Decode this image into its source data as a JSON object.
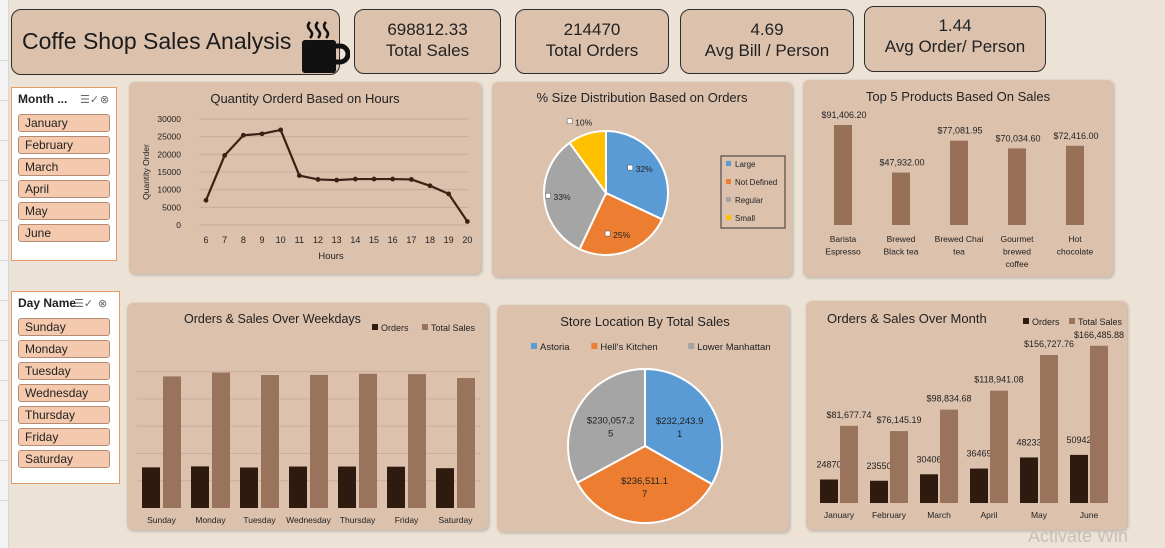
{
  "header": {
    "title": "Coffe Shop Sales Analysis",
    "kpis": [
      {
        "value": "698812.33",
        "label": "Total Sales"
      },
      {
        "value": "214470",
        "label": "Total Orders"
      },
      {
        "value": "4.69",
        "label": "Avg Bill /  Person"
      },
      {
        "value": "1.44",
        "label": "Avg Order/ Person"
      }
    ]
  },
  "slicers": {
    "month": {
      "header": "Month ...",
      "items": [
        "January",
        "February",
        "March",
        "April",
        "May",
        "June"
      ]
    },
    "day": {
      "header": "Day Name",
      "items": [
        "Sunday",
        "Monday",
        "Tuesday",
        "Wednesday",
        "Thursday",
        "Friday",
        "Saturday"
      ]
    }
  },
  "watermark": "Activate Win",
  "chart_data": [
    {
      "id": "hours",
      "type": "line",
      "title": "Quantity Orderd Based on Hours",
      "xlabel": "Hours",
      "ylabel": "Quantity Order",
      "x": [
        6,
        7,
        8,
        9,
        10,
        11,
        12,
        13,
        14,
        15,
        16,
        17,
        18,
        19,
        20
      ],
      "values": [
        7000,
        19700,
        25400,
        25800,
        26900,
        14000,
        12900,
        12700,
        13000,
        13000,
        13000,
        12900,
        11100,
        8800,
        1000
      ],
      "yticks": [
        0,
        5000,
        10000,
        15000,
        20000,
        25000,
        30000
      ],
      "ylim": [
        0,
        30000
      ],
      "grid": true,
      "color": "#3b2214"
    },
    {
      "id": "size",
      "type": "pie",
      "title": "% Size Distribution Based on Orders",
      "categories": [
        "Large",
        "Not Defined",
        "Regular",
        "Small"
      ],
      "values": [
        32,
        25,
        33,
        10
      ],
      "labels": [
        "32%",
        "25%",
        "33%",
        "10%"
      ],
      "colors": [
        "#5b9bd5",
        "#ed7d31",
        "#a5a5a5",
        "#ffc000"
      ],
      "legend": "right"
    },
    {
      "id": "top5",
      "type": "bar",
      "title": "Top 5 Products Based On Sales",
      "categories": [
        [
          "Barista",
          "Espresso"
        ],
        [
          "Brewed",
          "Black tea"
        ],
        [
          "Brewed Chai",
          "tea"
        ],
        [
          "Gourmet",
          "brewed",
          "coffee"
        ],
        [
          "Hot",
          "chocolate"
        ]
      ],
      "values": [
        91406.2,
        47932.0,
        77081.95,
        70034.6,
        72416.0
      ],
      "labels": [
        "$91,406.20",
        "$47,932.00",
        "$77,081.95",
        "$70,034.60",
        "$72,416.00"
      ],
      "color": "#987058"
    },
    {
      "id": "weekdays",
      "type": "bar",
      "title": "Orders & Sales Over Weekdays",
      "categories": [
        "Sunday",
        "Monday",
        "Tuesday",
        "Wednesday",
        "Thursday",
        "Friday",
        "Saturday"
      ],
      "series": [
        {
          "name": "Orders",
          "values": [
            29800,
            30500,
            29700,
            30400,
            30400,
            30300,
            29200
          ],
          "color": "#2e1a0f"
        },
        {
          "name": "Total Sales",
          "values": [
            96500,
            99300,
            97500,
            97600,
            98400,
            98200,
            95300
          ],
          "color": "#9a735c"
        }
      ],
      "ylim": [
        0,
        110000
      ],
      "legend": "top-right",
      "grid": true
    },
    {
      "id": "store",
      "type": "pie",
      "title": "Store Location By Total Sales",
      "categories": [
        "Astoria",
        "Hell's Kitchen",
        "Lower Manhattan"
      ],
      "values": [
        232243.91,
        236511.17,
        230057.25
      ],
      "labels": [
        [
          "$232,243.9",
          "1"
        ],
        [
          "$236,511.1",
          "7"
        ],
        [
          "$230,057.2",
          "5"
        ]
      ],
      "colors": [
        "#5b9bd5",
        "#ed7d31",
        "#a5a5a5"
      ],
      "legend": "top"
    },
    {
      "id": "monthly",
      "type": "bar",
      "title": "Orders & Sales Over Month",
      "categories": [
        "January",
        "February",
        "March",
        "April",
        "May",
        "June"
      ],
      "series": [
        {
          "name": "Orders",
          "values": [
            24870,
            23550,
            30406,
            36469,
            48233,
            50942
          ],
          "labels": [
            "24870",
            "23550",
            "30406",
            "36469",
            "48233",
            "50942"
          ],
          "color": "#2e1a0f"
        },
        {
          "name": "Total Sales",
          "values": [
            81677.74,
            76145.19,
            98834.68,
            118941.08,
            156727.76,
            166485.88
          ],
          "labels": [
            "$81,677.74",
            "$76,145.19",
            "$98,834.68",
            "$118,941.08",
            "$156,727.76",
            "$166,485.88"
          ],
          "color": "#9a735c"
        }
      ],
      "ylim": [
        0,
        180000
      ],
      "legend": "top-right"
    }
  ]
}
